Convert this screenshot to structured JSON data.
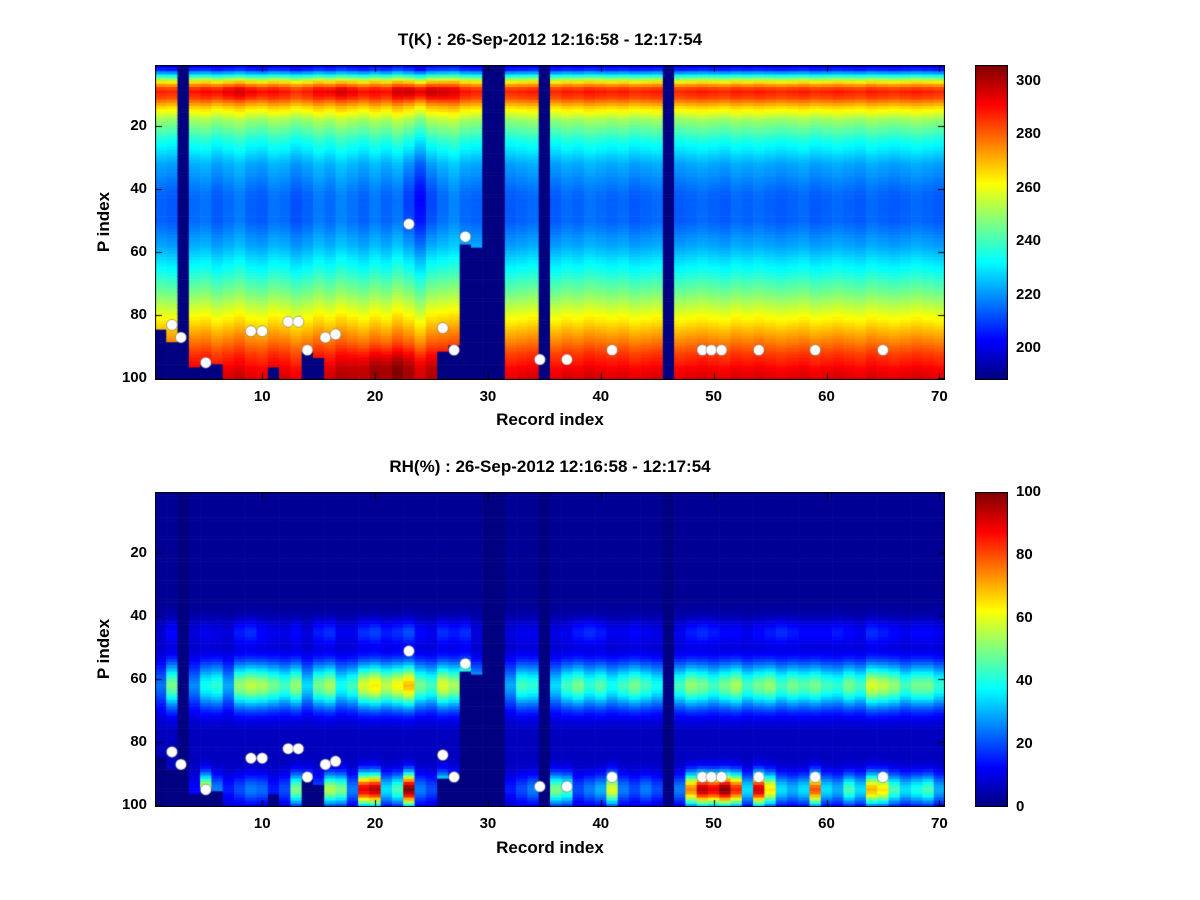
{
  "chart_data": [
    {
      "type": "heatmap",
      "title": "T(K) : 26-Sep-2012 12:16:58 - 12:17:54",
      "xlabel": "Record index",
      "ylabel": "P index",
      "colormap": "jet",
      "x_range": [
        1,
        70
      ],
      "y_range": [
        1,
        100
      ],
      "y_axis_reversed": true,
      "x_ticks": [
        10,
        20,
        30,
        40,
        50,
        60,
        70
      ],
      "y_ticks": [
        20,
        40,
        60,
        80,
        100
      ],
      "colorbar_ticks": [
        200,
        220,
        240,
        260,
        280,
        300
      ],
      "clim": [
        188,
        306
      ],
      "profile": [
        [
          0,
          196
        ],
        [
          2,
          206
        ],
        [
          4,
          235
        ],
        [
          6,
          265
        ],
        [
          8,
          284
        ],
        [
          9,
          288
        ],
        [
          11,
          283
        ],
        [
          14,
          266
        ],
        [
          18,
          250
        ],
        [
          24,
          236
        ],
        [
          32,
          222
        ],
        [
          42,
          214
        ],
        [
          50,
          214
        ],
        [
          58,
          222
        ],
        [
          66,
          234
        ],
        [
          74,
          248
        ],
        [
          80,
          260
        ],
        [
          86,
          272
        ],
        [
          92,
          284
        ],
        [
          97,
          292
        ],
        [
          100,
          295
        ]
      ],
      "col_offsets": [
        0,
        -1,
        0,
        1,
        2,
        -1,
        1,
        3,
        0,
        -1,
        2,
        1,
        -2,
        0,
        3,
        1,
        4,
        2,
        0,
        3,
        1,
        5,
        2,
        -3,
        3,
        4,
        5,
        1,
        0,
        0,
        0,
        -1,
        0,
        1,
        0,
        -1,
        1,
        0,
        2,
        1,
        0,
        1,
        -1,
        0,
        1,
        0,
        -1,
        0,
        1,
        0,
        -1,
        1,
        0,
        1,
        0,
        -1,
        0,
        1,
        -1,
        0,
        1,
        0,
        -1,
        1,
        0,
        -1,
        0,
        1,
        0,
        -1
      ],
      "bands": [],
      "blobs": [
        {
          "r": 21.5,
          "p": 96,
          "rw": 4,
          "pw": 5,
          "amp": 9
        },
        {
          "r": 24,
          "p": 42,
          "rw": 2,
          "pw": 16,
          "amp": -8
        },
        {
          "r": 8,
          "p": 9,
          "rw": 2.5,
          "pw": 2.5,
          "amp": 6
        },
        {
          "r": 17,
          "p": 9,
          "rw": 2,
          "pw": 2,
          "amp": 5
        },
        {
          "r": 23,
          "p": 9,
          "rw": 1.5,
          "pw": 2,
          "amp": 6
        },
        {
          "r": 25,
          "p": 9,
          "rw": 2,
          "pw": 2.5,
          "amp": 7
        }
      ],
      "missing_records": [
        3,
        30,
        31,
        35,
        46
      ],
      "bottom_cuts": {
        "1": 84,
        "2": 88,
        "4": 96,
        "5": 94,
        "6": 95,
        "11": 96,
        "14": 91,
        "15": 93,
        "26": 91,
        "27": 89,
        "28": 57,
        "29": 58
      },
      "markers": {
        "shape": "circle",
        "color": "#ffffff",
        "points": [
          [
            2,
            83
          ],
          [
            2.8,
            87
          ],
          [
            5,
            95
          ],
          [
            9,
            85
          ],
          [
            10,
            85
          ],
          [
            12.3,
            82
          ],
          [
            13.2,
            82
          ],
          [
            14,
            91
          ],
          [
            15.6,
            87
          ],
          [
            16.5,
            86
          ],
          [
            23,
            51
          ],
          [
            26,
            84
          ],
          [
            27,
            91
          ],
          [
            28,
            55
          ],
          [
            34.6,
            94
          ],
          [
            37,
            94
          ],
          [
            41,
            91
          ],
          [
            49,
            91
          ],
          [
            49.8,
            91
          ],
          [
            50.7,
            91
          ],
          [
            54,
            91
          ],
          [
            59,
            91
          ],
          [
            65,
            91
          ]
        ]
      }
    },
    {
      "type": "heatmap",
      "title": "RH(%) : 26-Sep-2012 12:16:58 - 12:17:54",
      "xlabel": "Record index",
      "ylabel": "P index",
      "colormap": "jet",
      "x_range": [
        1,
        70
      ],
      "y_range": [
        1,
        100
      ],
      "y_axis_reversed": true,
      "x_ticks": [
        10,
        20,
        30,
        40,
        50,
        60,
        70
      ],
      "y_ticks": [
        20,
        40,
        60,
        80,
        100
      ],
      "colorbar_ticks": [
        0,
        20,
        40,
        60,
        80,
        100
      ],
      "clim": [
        0,
        100
      ],
      "profile": [
        [
          0,
          2
        ],
        [
          35,
          2
        ],
        [
          42,
          4
        ],
        [
          50,
          6
        ],
        [
          56,
          10
        ],
        [
          62,
          14
        ],
        [
          68,
          10
        ],
        [
          76,
          6
        ],
        [
          84,
          6
        ],
        [
          92,
          5
        ],
        [
          100,
          4
        ]
      ],
      "col_offsets": null,
      "bands": [
        {
          "p_center": 62,
          "p_width": 7,
          "amps": [
            10,
            35,
            0,
            12,
            25,
            28,
            15,
            38,
            42,
            40,
            35,
            30,
            38,
            20,
            35,
            40,
            25,
            30,
            45,
            50,
            42,
            48,
            55,
            35,
            30,
            45,
            40,
            50,
            20,
            0,
            0,
            15,
            30,
            28,
            0,
            20,
            30,
            35,
            28,
            32,
            25,
            30,
            35,
            30,
            25,
            0,
            30,
            38,
            35,
            30,
            35,
            40,
            30,
            35,
            38,
            30,
            35,
            32,
            35,
            30,
            28,
            35,
            30,
            45,
            42,
            38,
            30,
            35,
            35,
            28
          ]
        },
        {
          "p_center": 95,
          "p_width": 5,
          "amps": [
            5,
            10,
            0,
            8,
            55,
            20,
            10,
            15,
            20,
            18,
            10,
            15,
            45,
            40,
            15,
            50,
            45,
            20,
            85,
            90,
            30,
            40,
            95,
            20,
            15,
            50,
            30,
            10,
            5,
            0,
            0,
            10,
            15,
            20,
            0,
            45,
            40,
            15,
            20,
            25,
            55,
            20,
            15,
            20,
            15,
            0,
            20,
            70,
            90,
            85,
            95,
            80,
            30,
            88,
            60,
            30,
            25,
            30,
            75,
            30,
            25,
            40,
            30,
            65,
            60,
            40,
            30,
            35,
            40,
            25
          ]
        },
        {
          "p_center": 45,
          "p_width": 4,
          "amps": [
            3,
            8,
            0,
            4,
            6,
            5,
            4,
            10,
            12,
            8,
            6,
            5,
            8,
            4,
            10,
            12,
            6,
            6,
            12,
            14,
            10,
            12,
            15,
            8,
            6,
            12,
            10,
            12,
            4,
            0,
            0,
            4,
            6,
            6,
            0,
            5,
            6,
            10,
            12,
            10,
            6,
            6,
            8,
            6,
            5,
            0,
            6,
            10,
            12,
            10,
            8,
            8,
            6,
            8,
            10,
            12,
            10,
            8,
            8,
            8,
            10,
            8,
            6,
            12,
            10,
            8,
            6,
            8,
            8,
            6
          ]
        }
      ],
      "blobs": [],
      "missing_records": [
        3,
        30,
        31,
        35,
        46
      ],
      "bottom_cuts": {
        "1": 84,
        "2": 88,
        "4": 96,
        "5": 94,
        "6": 95,
        "11": 96,
        "14": 91,
        "15": 93,
        "26": 91,
        "27": 89,
        "28": 57,
        "29": 58
      },
      "markers": {
        "shape": "circle",
        "color": "#ffffff",
        "points": [
          [
            2,
            83
          ],
          [
            2.8,
            87
          ],
          [
            5,
            95
          ],
          [
            9,
            85
          ],
          [
            10,
            85
          ],
          [
            12.3,
            82
          ],
          [
            13.2,
            82
          ],
          [
            14,
            91
          ],
          [
            15.6,
            87
          ],
          [
            16.5,
            86
          ],
          [
            23,
            51
          ],
          [
            26,
            84
          ],
          [
            27,
            91
          ],
          [
            28,
            55
          ],
          [
            34.6,
            94
          ],
          [
            37,
            94
          ],
          [
            41,
            91
          ],
          [
            49,
            91
          ],
          [
            49.8,
            91
          ],
          [
            50.7,
            91
          ],
          [
            54,
            91
          ],
          [
            59,
            91
          ],
          [
            65,
            91
          ]
        ]
      }
    }
  ]
}
